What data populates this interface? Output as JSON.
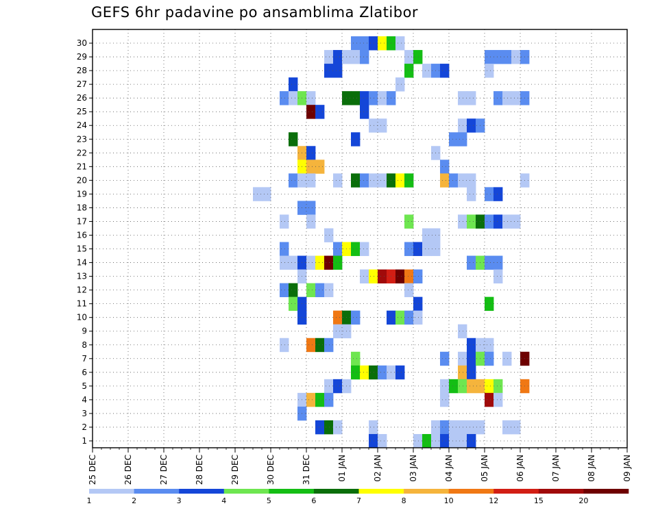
{
  "chart_data": {
    "type": "heatmap",
    "title": "GEFS 6hr padavine po ansamblima Zlatibor",
    "x_tick_labels": [
      "25 DEC",
      "26 DEC",
      "27 DEC",
      "28 DEC",
      "29 DEC",
      "30 DEC",
      "31 DEC",
      "01 JAN",
      "02 JAN",
      "03 JAN",
      "04 JAN",
      "05 JAN",
      "06 JAN",
      "07 JAN",
      "08 JAN",
      "09 JAN"
    ],
    "y_tick_labels": [
      "1",
      "2",
      "3",
      "4",
      "5",
      "6",
      "7",
      "8",
      "9",
      "10",
      "11",
      "12",
      "13",
      "14",
      "15",
      "16",
      "17",
      "18",
      "19",
      "20",
      "21",
      "22",
      "23",
      "24",
      "25",
      "26",
      "27",
      "28",
      "29",
      "30"
    ],
    "y_range": [
      1,
      30
    ],
    "steps_per_day": 4,
    "grid": true,
    "color_scale": {
      "thresholds": [
        "1",
        "2",
        "3",
        "4",
        "5",
        "6",
        "7",
        "8",
        "10",
        "12",
        "15",
        "20"
      ],
      "colors": [
        "#b4c8f5",
        "#5a8cf0",
        "#1446d8",
        "#6ee650",
        "#14be14",
        "#0a6e0a",
        "#ffff00",
        "#f5b43c",
        "#f07814",
        "#d21e14",
        "#a00a0a",
        "#6e0000"
      ]
    },
    "cells": [
      {
        "m": 30,
        "s": [
          29,
          30
        ],
        "c": 2
      },
      {
        "m": 30,
        "s": [
          31
        ],
        "c": 3
      },
      {
        "m": 30,
        "s": [
          32
        ],
        "c": 7
      },
      {
        "m": 30,
        "s": [
          33
        ],
        "c": 5
      },
      {
        "m": 30,
        "s": [
          34
        ],
        "c": 1
      },
      {
        "m": 29,
        "s": [
          26
        ],
        "c": 1
      },
      {
        "m": 29,
        "s": [
          27
        ],
        "c": 3
      },
      {
        "m": 29,
        "s": [
          28,
          29
        ],
        "c": 1
      },
      {
        "m": 29,
        "s": [
          30
        ],
        "c": 2
      },
      {
        "m": 29,
        "s": [
          35
        ],
        "c": 1
      },
      {
        "m": 29,
        "s": [
          36
        ],
        "c": 5
      },
      {
        "m": 29,
        "s": [
          44,
          45,
          46
        ],
        "c": 2
      },
      {
        "m": 29,
        "s": [
          47
        ],
        "c": 1
      },
      {
        "m": 29,
        "s": [
          48
        ],
        "c": 2
      },
      {
        "m": 28,
        "s": [
          26,
          27
        ],
        "c": 3
      },
      {
        "m": 28,
        "s": [
          35
        ],
        "c": 5
      },
      {
        "m": 28,
        "s": [
          37
        ],
        "c": 1
      },
      {
        "m": 28,
        "s": [
          38
        ],
        "c": 2
      },
      {
        "m": 28,
        "s": [
          39
        ],
        "c": 3
      },
      {
        "m": 28,
        "s": [
          44
        ],
        "c": 1
      },
      {
        "m": 27,
        "s": [
          22
        ],
        "c": 3
      },
      {
        "m": 27,
        "s": [
          34
        ],
        "c": 1
      },
      {
        "m": 26,
        "s": [
          21
        ],
        "c": 2
      },
      {
        "m": 26,
        "s": [
          22
        ],
        "c": 1
      },
      {
        "m": 26,
        "s": [
          23
        ],
        "c": 4
      },
      {
        "m": 26,
        "s": [
          24
        ],
        "c": 1
      },
      {
        "m": 26,
        "s": [
          28,
          29
        ],
        "c": 6
      },
      {
        "m": 26,
        "s": [
          30
        ],
        "c": 3
      },
      {
        "m": 26,
        "s": [
          31
        ],
        "c": 2
      },
      {
        "m": 26,
        "s": [
          32
        ],
        "c": 1
      },
      {
        "m": 26,
        "s": [
          33
        ],
        "c": 2
      },
      {
        "m": 26,
        "s": [
          41,
          42
        ],
        "c": 1
      },
      {
        "m": 26,
        "s": [
          45
        ],
        "c": 2
      },
      {
        "m": 26,
        "s": [
          46,
          47
        ],
        "c": 1
      },
      {
        "m": 26,
        "s": [
          48
        ],
        "c": 2
      },
      {
        "m": 25,
        "s": [
          24
        ],
        "c": 12
      },
      {
        "m": 25,
        "s": [
          25
        ],
        "c": 3
      },
      {
        "m": 25,
        "s": [
          30
        ],
        "c": 3
      },
      {
        "m": 24,
        "s": [
          31,
          32
        ],
        "c": 1
      },
      {
        "m": 24,
        "s": [
          41
        ],
        "c": 1
      },
      {
        "m": 24,
        "s": [
          42
        ],
        "c": 3
      },
      {
        "m": 24,
        "s": [
          43
        ],
        "c": 2
      },
      {
        "m": 23,
        "s": [
          22
        ],
        "c": 6
      },
      {
        "m": 23,
        "s": [
          29
        ],
        "c": 3
      },
      {
        "m": 23,
        "s": [
          40,
          41
        ],
        "c": 2
      },
      {
        "m": 22,
        "s": [
          23
        ],
        "c": 8
      },
      {
        "m": 22,
        "s": [
          24
        ],
        "c": 3
      },
      {
        "m": 22,
        "s": [
          38
        ],
        "c": 1
      },
      {
        "m": 21,
        "s": [
          23
        ],
        "c": 7
      },
      {
        "m": 21,
        "s": [
          24,
          25
        ],
        "c": 8
      },
      {
        "m": 21,
        "s": [
          39
        ],
        "c": 2
      },
      {
        "m": 20,
        "s": [
          22
        ],
        "c": 2
      },
      {
        "m": 20,
        "s": [
          23,
          24
        ],
        "c": 1
      },
      {
        "m": 20,
        "s": [
          27
        ],
        "c": 1
      },
      {
        "m": 20,
        "s": [
          29
        ],
        "c": 6
      },
      {
        "m": 20,
        "s": [
          30
        ],
        "c": 2
      },
      {
        "m": 20,
        "s": [
          31,
          32
        ],
        "c": 1
      },
      {
        "m": 20,
        "s": [
          33
        ],
        "c": 6
      },
      {
        "m": 20,
        "s": [
          34
        ],
        "c": 7
      },
      {
        "m": 20,
        "s": [
          35
        ],
        "c": 5
      },
      {
        "m": 20,
        "s": [
          39
        ],
        "c": 8
      },
      {
        "m": 20,
        "s": [
          40
        ],
        "c": 2
      },
      {
        "m": 20,
        "s": [
          41,
          42
        ],
        "c": 1
      },
      {
        "m": 20,
        "s": [
          48
        ],
        "c": 1
      },
      {
        "m": 19,
        "s": [
          18,
          19
        ],
        "c": 1
      },
      {
        "m": 19,
        "s": [
          42
        ],
        "c": 1
      },
      {
        "m": 19,
        "s": [
          44
        ],
        "c": 2
      },
      {
        "m": 19,
        "s": [
          45
        ],
        "c": 3
      },
      {
        "m": 18,
        "s": [
          23,
          24
        ],
        "c": 2
      },
      {
        "m": 17,
        "s": [
          21
        ],
        "c": 1
      },
      {
        "m": 17,
        "s": [
          24
        ],
        "c": 1
      },
      {
        "m": 17,
        "s": [
          35
        ],
        "c": 4
      },
      {
        "m": 17,
        "s": [
          41
        ],
        "c": 1
      },
      {
        "m": 17,
        "s": [
          42
        ],
        "c": 4
      },
      {
        "m": 17,
        "s": [
          43
        ],
        "c": 6
      },
      {
        "m": 17,
        "s": [
          44
        ],
        "c": 2
      },
      {
        "m": 17,
        "s": [
          45
        ],
        "c": 3
      },
      {
        "m": 17,
        "s": [
          46,
          47
        ],
        "c": 1
      },
      {
        "m": 16,
        "s": [
          26
        ],
        "c": 1
      },
      {
        "m": 16,
        "s": [
          37,
          38
        ],
        "c": 1
      },
      {
        "m": 15,
        "s": [
          21
        ],
        "c": 2
      },
      {
        "m": 15,
        "s": [
          27
        ],
        "c": 2
      },
      {
        "m": 15,
        "s": [
          28
        ],
        "c": 7
      },
      {
        "m": 15,
        "s": [
          29
        ],
        "c": 5
      },
      {
        "m": 15,
        "s": [
          30
        ],
        "c": 1
      },
      {
        "m": 15,
        "s": [
          35
        ],
        "c": 2
      },
      {
        "m": 15,
        "s": [
          36
        ],
        "c": 3
      },
      {
        "m": 15,
        "s": [
          37,
          38
        ],
        "c": 1
      },
      {
        "m": 14,
        "s": [
          21,
          22
        ],
        "c": 1
      },
      {
        "m": 14,
        "s": [
          23
        ],
        "c": 3
      },
      {
        "m": 14,
        "s": [
          24
        ],
        "c": 1
      },
      {
        "m": 14,
        "s": [
          25
        ],
        "c": 7
      },
      {
        "m": 14,
        "s": [
          26
        ],
        "c": 12
      },
      {
        "m": 14,
        "s": [
          27
        ],
        "c": 5
      },
      {
        "m": 14,
        "s": [
          42
        ],
        "c": 2
      },
      {
        "m": 14,
        "s": [
          43
        ],
        "c": 4
      },
      {
        "m": 14,
        "s": [
          44,
          45
        ],
        "c": 2
      },
      {
        "m": 13,
        "s": [
          23
        ],
        "c": 1
      },
      {
        "m": 13,
        "s": [
          30
        ],
        "c": 1
      },
      {
        "m": 13,
        "s": [
          31
        ],
        "c": 7
      },
      {
        "m": 13,
        "s": [
          32
        ],
        "c": 11
      },
      {
        "m": 13,
        "s": [
          33
        ],
        "c": 10
      },
      {
        "m": 13,
        "s": [
          34
        ],
        "c": 12
      },
      {
        "m": 13,
        "s": [
          35
        ],
        "c": 9
      },
      {
        "m": 13,
        "s": [
          36
        ],
        "c": 2
      },
      {
        "m": 13,
        "s": [
          45
        ],
        "c": 1
      },
      {
        "m": 12,
        "s": [
          21
        ],
        "c": 2
      },
      {
        "m": 12,
        "s": [
          22
        ],
        "c": 6
      },
      {
        "m": 12,
        "s": [
          24
        ],
        "c": 4
      },
      {
        "m": 12,
        "s": [
          25
        ],
        "c": 2
      },
      {
        "m": 12,
        "s": [
          26
        ],
        "c": 1
      },
      {
        "m": 12,
        "s": [
          35
        ],
        "c": 1
      },
      {
        "m": 11,
        "s": [
          22
        ],
        "c": 4
      },
      {
        "m": 11,
        "s": [
          23
        ],
        "c": 3
      },
      {
        "m": 11,
        "s": [
          36
        ],
        "c": 3
      },
      {
        "m": 11,
        "s": [
          44
        ],
        "c": 5
      },
      {
        "m": 10,
        "s": [
          23
        ],
        "c": 3
      },
      {
        "m": 10,
        "s": [
          27
        ],
        "c": 9
      },
      {
        "m": 10,
        "s": [
          28
        ],
        "c": 6
      },
      {
        "m": 10,
        "s": [
          29
        ],
        "c": 2
      },
      {
        "m": 10,
        "s": [
          33
        ],
        "c": 3
      },
      {
        "m": 10,
        "s": [
          34
        ],
        "c": 4
      },
      {
        "m": 10,
        "s": [
          35
        ],
        "c": 2
      },
      {
        "m": 10,
        "s": [
          36
        ],
        "c": 1
      },
      {
        "m": 9,
        "s": [
          27,
          28
        ],
        "c": 1
      },
      {
        "m": 9,
        "s": [
          41
        ],
        "c": 1
      },
      {
        "m": 8,
        "s": [
          21
        ],
        "c": 1
      },
      {
        "m": 8,
        "s": [
          24
        ],
        "c": 9
      },
      {
        "m": 8,
        "s": [
          25
        ],
        "c": 6
      },
      {
        "m": 8,
        "s": [
          26
        ],
        "c": 2
      },
      {
        "m": 8,
        "s": [
          42
        ],
        "c": 3
      },
      {
        "m": 8,
        "s": [
          43,
          44
        ],
        "c": 1
      },
      {
        "m": 7,
        "s": [
          29
        ],
        "c": 4
      },
      {
        "m": 7,
        "s": [
          39
        ],
        "c": 2
      },
      {
        "m": 7,
        "s": [
          41
        ],
        "c": 1
      },
      {
        "m": 7,
        "s": [
          42
        ],
        "c": 3
      },
      {
        "m": 7,
        "s": [
          43
        ],
        "c": 4
      },
      {
        "m": 7,
        "s": [
          44
        ],
        "c": 2
      },
      {
        "m": 7,
        "s": [
          46
        ],
        "c": 1
      },
      {
        "m": 7,
        "s": [
          48
        ],
        "c": 12
      },
      {
        "m": 6,
        "s": [
          29
        ],
        "c": 5
      },
      {
        "m": 6,
        "s": [
          30
        ],
        "c": 7
      },
      {
        "m": 6,
        "s": [
          31
        ],
        "c": 6
      },
      {
        "m": 6,
        "s": [
          32
        ],
        "c": 2
      },
      {
        "m": 6,
        "s": [
          33
        ],
        "c": 1
      },
      {
        "m": 6,
        "s": [
          34
        ],
        "c": 3
      },
      {
        "m": 6,
        "s": [
          41
        ],
        "c": 8
      },
      {
        "m": 6,
        "s": [
          42
        ],
        "c": 3
      },
      {
        "m": 5,
        "s": [
          26
        ],
        "c": 1
      },
      {
        "m": 5,
        "s": [
          27
        ],
        "c": 3
      },
      {
        "m": 5,
        "s": [
          28
        ],
        "c": 1
      },
      {
        "m": 5,
        "s": [
          39
        ],
        "c": 1
      },
      {
        "m": 5,
        "s": [
          40
        ],
        "c": 5
      },
      {
        "m": 5,
        "s": [
          41
        ],
        "c": 4
      },
      {
        "m": 5,
        "s": [
          42
        ],
        "c": 8
      },
      {
        "m": 5,
        "s": [
          43
        ],
        "c": 8
      },
      {
        "m": 5,
        "s": [
          44
        ],
        "c": 7
      },
      {
        "m": 5,
        "s": [
          45
        ],
        "c": 4
      },
      {
        "m": 5,
        "s": [
          48
        ],
        "c": 9
      },
      {
        "m": 4,
        "s": [
          23
        ],
        "c": 1
      },
      {
        "m": 4,
        "s": [
          24
        ],
        "c": 8
      },
      {
        "m": 4,
        "s": [
          25
        ],
        "c": 5
      },
      {
        "m": 4,
        "s": [
          26
        ],
        "c": 2
      },
      {
        "m": 4,
        "s": [
          39
        ],
        "c": 1
      },
      {
        "m": 4,
        "s": [
          44
        ],
        "c": 11
      },
      {
        "m": 4,
        "s": [
          45
        ],
        "c": 1
      },
      {
        "m": 3,
        "s": [
          23
        ],
        "c": 2
      },
      {
        "m": 2,
        "s": [
          25
        ],
        "c": 3
      },
      {
        "m": 2,
        "s": [
          26
        ],
        "c": 6
      },
      {
        "m": 2,
        "s": [
          27
        ],
        "c": 1
      },
      {
        "m": 2,
        "s": [
          31
        ],
        "c": 1
      },
      {
        "m": 2,
        "s": [
          38
        ],
        "c": 1
      },
      {
        "m": 2,
        "s": [
          39
        ],
        "c": 2
      },
      {
        "m": 2,
        "s": [
          40,
          41,
          42,
          43
        ],
        "c": 1
      },
      {
        "m": 2,
        "s": [
          46,
          47
        ],
        "c": 1
      },
      {
        "m": 1,
        "s": [
          31
        ],
        "c": 3
      },
      {
        "m": 1,
        "s": [
          32
        ],
        "c": 1
      },
      {
        "m": 1,
        "s": [
          36
        ],
        "c": 1
      },
      {
        "m": 1,
        "s": [
          37
        ],
        "c": 5
      },
      {
        "m": 1,
        "s": [
          38
        ],
        "c": 1
      },
      {
        "m": 1,
        "s": [
          39
        ],
        "c": 3
      },
      {
        "m": 1,
        "s": [
          40,
          41
        ],
        "c": 1
      },
      {
        "m": 1,
        "s": [
          42
        ],
        "c": 3
      }
    ]
  }
}
